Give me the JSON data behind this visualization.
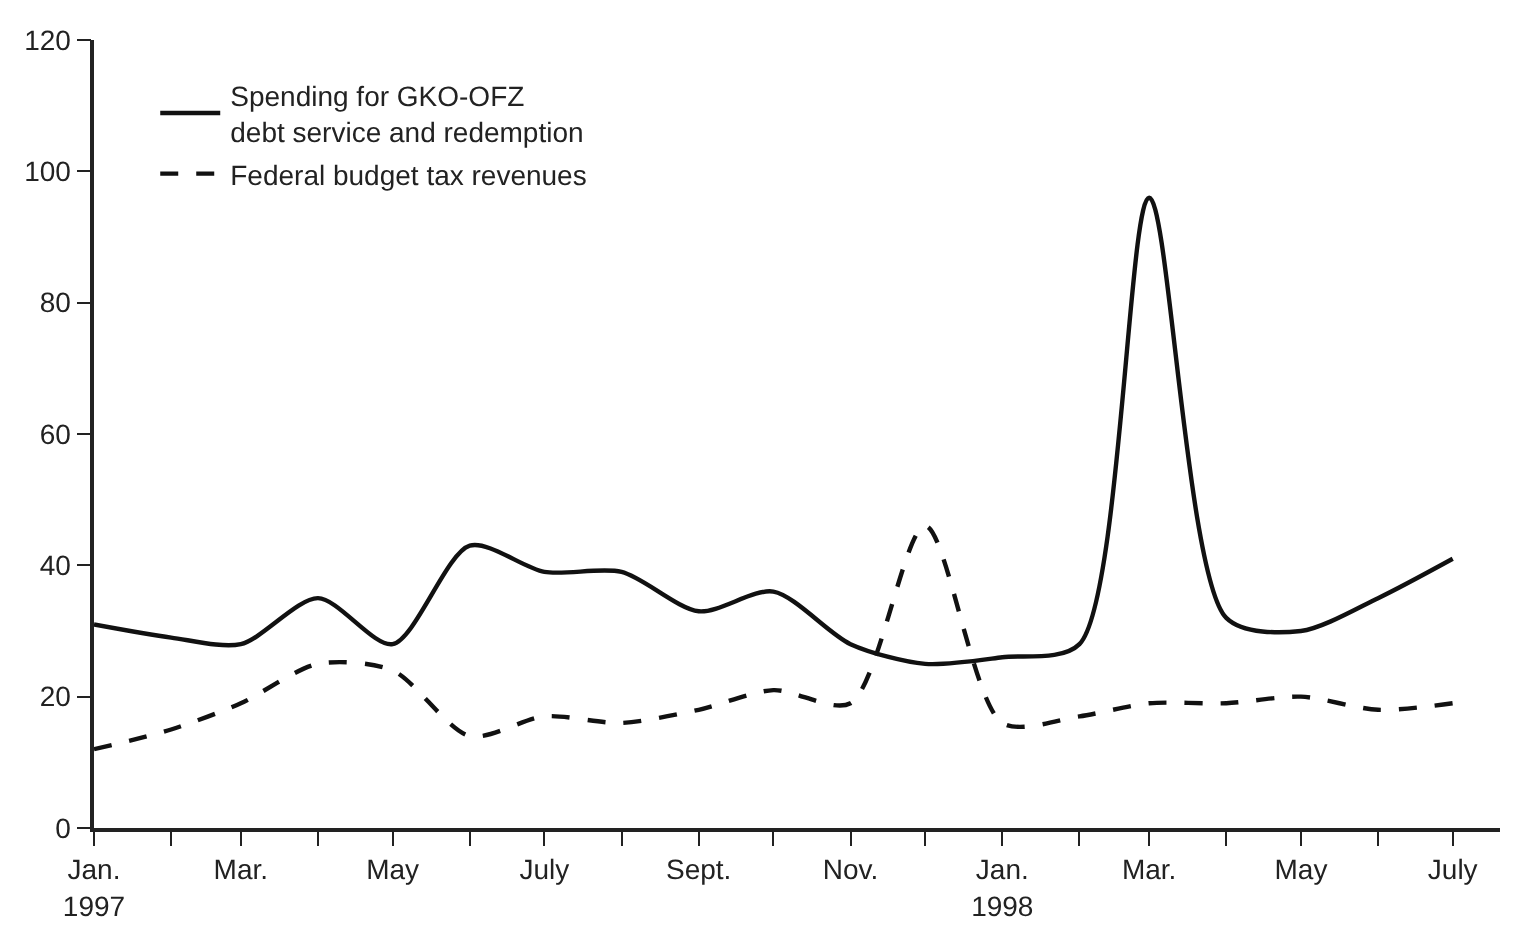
{
  "chart_data": {
    "type": "line",
    "x": [
      "1997-01",
      "1997-02",
      "1997-03",
      "1997-04",
      "1997-05",
      "1997-06",
      "1997-07",
      "1997-08",
      "1997-09",
      "1997-10",
      "1997-11",
      "1997-12",
      "1998-01",
      "1998-02",
      "1998-03",
      "1998-04",
      "1998-05",
      "1998-06",
      "1998-07"
    ],
    "series": [
      {
        "name": "Spending for GKO-OFZ\ndebt service and redemption",
        "color": "#111111",
        "line_style": "solid",
        "values": [
          31,
          29,
          28,
          35,
          28,
          43,
          39,
          39,
          33,
          36,
          28,
          25,
          26,
          28,
          96,
          32,
          30,
          35,
          41
        ]
      },
      {
        "name": "Federal budget tax revenues",
        "color": "#111111",
        "line_style": "dashed",
        "values": [
          12,
          15,
          19,
          25,
          24,
          14,
          17,
          16,
          18,
          21,
          19,
          46,
          16,
          17,
          19,
          19,
          20,
          18,
          19
        ]
      }
    ],
    "xlim": [
      "1997-01-01",
      "1998-07-20"
    ],
    "xticks": [
      {
        "value": "1997-01",
        "label": "Jan.\n1997"
      },
      {
        "value": "1997-02",
        "label": null
      },
      {
        "value": "1997-03",
        "label": "Mar."
      },
      {
        "value": "1997-04",
        "label": null
      },
      {
        "value": "1997-05",
        "label": "May"
      },
      {
        "value": "1997-06",
        "label": null
      },
      {
        "value": "1997-07",
        "label": "July"
      },
      {
        "value": "1997-08",
        "label": null
      },
      {
        "value": "1997-09",
        "label": "Sept."
      },
      {
        "value": "1997-10",
        "label": null
      },
      {
        "value": "1997-11",
        "label": "Nov."
      },
      {
        "value": "1997-12",
        "label": null
      },
      {
        "value": "1998-01",
        "label": "Jan.\n1998"
      },
      {
        "value": "1998-02",
        "label": null
      },
      {
        "value": "1998-03",
        "label": "Mar."
      },
      {
        "value": "1998-04",
        "label": null
      },
      {
        "value": "1998-05",
        "label": "May"
      },
      {
        "value": "1998-06",
        "label": null
      },
      {
        "value": "1998-07",
        "label": "July"
      }
    ],
    "ylim": [
      0,
      120
    ],
    "yticks": [
      0,
      20,
      40,
      60,
      80,
      100,
      120
    ],
    "legend": "top left",
    "marker": "none"
  }
}
